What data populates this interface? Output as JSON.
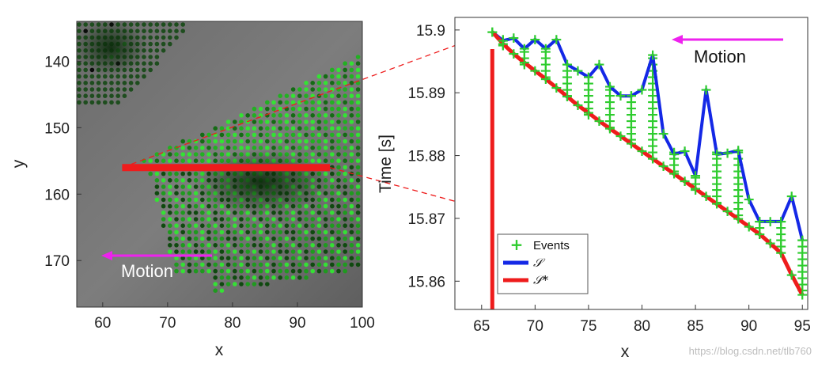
{
  "colors": {
    "events": "#2ecc2e",
    "surface": "#1428e6",
    "surface_star": "#ee1c1c",
    "motion_arrow": "#ee22ee",
    "dashed": "#ee1c1c"
  },
  "left_panel": {
    "title": "",
    "xlabel": "x",
    "ylabel": "y",
    "xlim": [
      56,
      100
    ],
    "ylim": [
      134,
      177
    ],
    "y_inverted": true,
    "xticks": [
      60,
      70,
      80,
      90,
      100
    ],
    "yticks": [
      140,
      150,
      160,
      170
    ],
    "motion_label": "Motion",
    "red_segment": {
      "y": 156,
      "x_start": 63,
      "x_end": 95
    }
  },
  "chart_data": {
    "type": "line",
    "title": "",
    "xlabel": "x",
    "ylabel": "Time [s]",
    "xlim": [
      62.5,
      95.5
    ],
    "ylim": [
      15.8555,
      15.902
    ],
    "xticks": [
      65,
      70,
      75,
      80,
      85,
      90,
      95
    ],
    "yticks": [
      15.86,
      15.87,
      15.88,
      15.89,
      15.9
    ],
    "ytick_labels": [
      "15.86",
      "15.87",
      "15.88",
      "15.89",
      "15.9"
    ],
    "motion_label": "Motion",
    "vertical_marker_x": 66,
    "legend": {
      "position": "bottom-left",
      "entries": [
        "Events",
        "𝒮",
        "𝒮*"
      ]
    },
    "series": [
      {
        "name": "𝒮",
        "x": [
          66,
          67,
          68,
          69,
          70,
          71,
          72,
          73,
          74,
          75,
          76,
          77,
          78,
          79,
          80,
          81,
          82,
          83,
          84,
          85,
          86,
          87,
          88,
          89,
          90,
          91,
          92,
          93,
          94,
          95
        ],
        "values": [
          15.8997,
          15.8983,
          15.8987,
          15.897,
          15.8985,
          15.897,
          15.8985,
          15.8945,
          15.8935,
          15.8925,
          15.8945,
          15.891,
          15.8895,
          15.8895,
          15.8905,
          15.896,
          15.8835,
          15.8802,
          15.8807,
          15.8768,
          15.8905,
          15.8802,
          15.8804,
          15.8808,
          15.873,
          15.8695,
          15.8695,
          15.8695,
          15.8735,
          15.8665
        ]
      },
      {
        "name": "𝒮*",
        "x": [
          66,
          67,
          68,
          69,
          70,
          71,
          72,
          73,
          74,
          75,
          76,
          77,
          78,
          79,
          80,
          81,
          82,
          83,
          84,
          85,
          86,
          87,
          88,
          89,
          90,
          91,
          92,
          93,
          94,
          95
        ],
        "values": [
          15.8997,
          15.8978,
          15.8962,
          15.8948,
          15.8935,
          15.8922,
          15.8908,
          15.8894,
          15.888,
          15.8868,
          15.8855,
          15.8843,
          15.8831,
          15.8819,
          15.8807,
          15.8795,
          15.8783,
          15.8771,
          15.8759,
          15.8747,
          15.8735,
          15.8723,
          15.8711,
          15.8699,
          15.8687,
          15.8675,
          15.866,
          15.8645,
          15.861,
          15.8578
        ]
      }
    ],
    "events_rows": [
      15.8995,
      15.8985,
      15.8975,
      15.8965,
      15.8955,
      15.8945,
      15.8935,
      15.8925,
      15.8915,
      15.8905,
      15.8895,
      15.8885,
      15.8875,
      15.8865,
      15.8855,
      15.8845,
      15.8835,
      15.8825,
      15.8815,
      15.8805,
      15.8795,
      15.8785,
      15.8775,
      15.8765,
      15.8755,
      15.8745,
      15.8735,
      15.8725,
      15.8715,
      15.8705,
      15.8695,
      15.8685,
      15.8675,
      15.8665,
      15.8655,
      15.8645,
      15.8635,
      15.8625,
      15.8615,
      15.8605,
      15.8595,
      15.8585
    ]
  },
  "watermark": "https://blog.csdn.net/tlb760"
}
